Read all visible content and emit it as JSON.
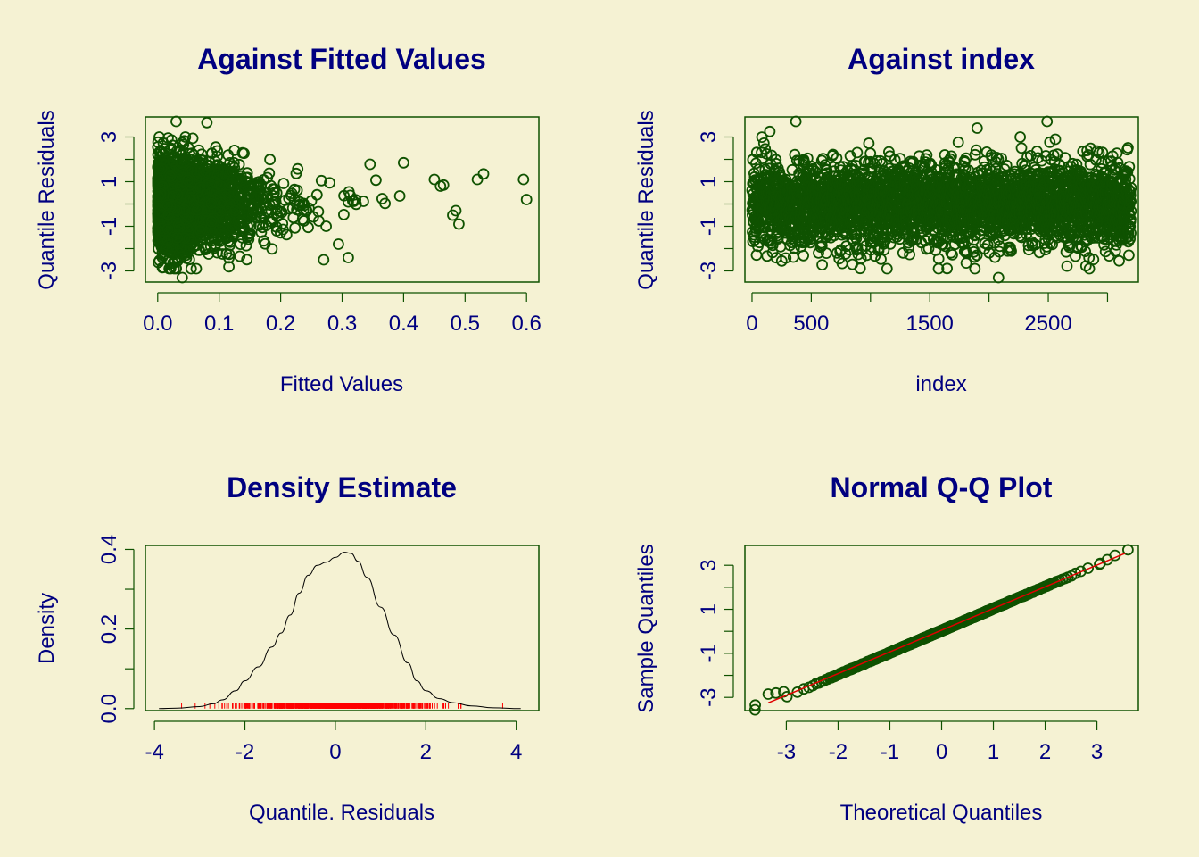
{
  "colors": {
    "background": "#f5f2d3",
    "text": "#000080",
    "frame": "#0f5200",
    "points": "#0f5200",
    "reference_line": "#e00000",
    "rug": "#ff0000",
    "density_line": "#000000"
  },
  "chart_data": [
    {
      "id": "fitted",
      "type": "scatter",
      "title": "Against Fitted Values",
      "xlabel": "Fitted Values",
      "ylabel": "Quantile Residuals",
      "xlim": [
        -0.02,
        0.62
      ],
      "ylim": [
        -3.5,
        3.9
      ],
      "xticks": [
        0.0,
        0.1,
        0.2,
        0.3,
        0.4,
        0.5,
        0.6
      ],
      "xtick_labels": [
        "0.0",
        "0.1",
        "0.2",
        "0.3",
        "0.4",
        "0.5",
        "0.6"
      ],
      "yticks": [
        -3,
        -2,
        -1,
        0,
        1,
        2,
        3
      ],
      "ytick_labels": [
        "-3",
        "",
        "-1",
        "",
        "1",
        "",
        "3"
      ],
      "n_points": 3200,
      "notable_points": [
        {
          "x": 0.45,
          "y": 1.1
        },
        {
          "x": 0.46,
          "y": 0.8
        },
        {
          "x": 0.465,
          "y": 0.85
        },
        {
          "x": 0.48,
          "y": -0.5
        },
        {
          "x": 0.485,
          "y": -0.3
        },
        {
          "x": 0.49,
          "y": -0.9
        },
        {
          "x": 0.52,
          "y": 1.1
        },
        {
          "x": 0.53,
          "y": 1.35
        },
        {
          "x": 0.595,
          "y": 1.1
        },
        {
          "x": 0.6,
          "y": 0.2
        },
        {
          "x": 0.04,
          "y": -3.3
        },
        {
          "x": 0.03,
          "y": 3.7
        },
        {
          "x": 0.08,
          "y": 3.65
        },
        {
          "x": 0.27,
          "y": -2.5
        },
        {
          "x": 0.31,
          "y": -2.4
        },
        {
          "x": 0.4,
          "y": 1.85
        }
      ]
    },
    {
      "id": "index",
      "type": "scatter",
      "title": "Against  index",
      "xlabel": "index",
      "ylabel": "Quantile Residuals",
      "xlim": [
        -60,
        3260
      ],
      "ylim": [
        -3.5,
        3.9
      ],
      "xticks": [
        0,
        500,
        1000,
        1500,
        2000,
        2500,
        3000
      ],
      "xtick_labels": [
        "0",
        "500",
        "",
        "1500",
        "",
        "2500",
        ""
      ],
      "yticks": [
        -3,
        -2,
        -1,
        0,
        1,
        2,
        3
      ],
      "ytick_labels": [
        "-3",
        "",
        "-1",
        "",
        "1",
        "",
        "3"
      ],
      "n_points": 3200,
      "notable_points": [
        {
          "x": 370,
          "y": 3.7
        },
        {
          "x": 2490,
          "y": 3.7
        },
        {
          "x": 1900,
          "y": 3.4
        },
        {
          "x": 150,
          "y": 3.25
        },
        {
          "x": 2080,
          "y": -3.3
        },
        {
          "x": 2560,
          "y": 2.9
        }
      ]
    },
    {
      "id": "density",
      "type": "line",
      "title": "Density Estimate",
      "xlabel": "Quantile. Residuals",
      "ylabel": "Density",
      "xlim": [
        -4.2,
        4.5
      ],
      "ylim": [
        -0.005,
        0.41
      ],
      "xticks": [
        -4,
        -2,
        0,
        2,
        4
      ],
      "xtick_labels": [
        "-4",
        "-2",
        "0",
        "2",
        "4"
      ],
      "yticks": [
        0.0,
        0.1,
        0.2,
        0.3,
        0.4
      ],
      "ytick_labels": [
        "0.0",
        "",
        "0.2",
        "",
        "0.4"
      ],
      "x": [
        -3.9,
        -3.5,
        -3.0,
        -2.7,
        -2.5,
        -2.2,
        -2.0,
        -1.7,
        -1.4,
        -1.2,
        -1.0,
        -0.8,
        -0.6,
        -0.4,
        -0.2,
        0.0,
        0.2,
        0.35,
        0.5,
        0.7,
        1.0,
        1.3,
        1.6,
        1.8,
        2.0,
        2.3,
        2.6,
        3.0,
        3.5,
        4.1
      ],
      "y": [
        0.0,
        0.001,
        0.005,
        0.012,
        0.022,
        0.045,
        0.07,
        0.105,
        0.155,
        0.19,
        0.235,
        0.29,
        0.335,
        0.36,
        0.368,
        0.38,
        0.393,
        0.39,
        0.37,
        0.33,
        0.255,
        0.185,
        0.115,
        0.07,
        0.045,
        0.025,
        0.015,
        0.007,
        0.002,
        0.0
      ],
      "rug_range": [
        -3.4,
        3.7
      ]
    },
    {
      "id": "qq",
      "type": "scatter",
      "title": "Normal Q-Q Plot",
      "xlabel": "Theoretical Quantiles",
      "ylabel": "Sample Quantiles",
      "xlim": [
        -3.8,
        3.8
      ],
      "ylim": [
        -3.6,
        3.9
      ],
      "xticks": [
        -3,
        -2,
        -1,
        0,
        1,
        2,
        3
      ],
      "xtick_labels": [
        "-3",
        "-2",
        "-1",
        "0",
        "1",
        "2",
        "3"
      ],
      "yticks": [
        -3,
        -2,
        -1,
        0,
        1,
        2,
        3
      ],
      "ytick_labels": [
        "-3",
        "",
        "-1",
        "",
        "1",
        "",
        "3"
      ],
      "n_points": 3200,
      "reference_line": {
        "x": [
          -3.35,
          3.55
        ],
        "y": [
          -3.25,
          3.55
        ]
      }
    }
  ]
}
